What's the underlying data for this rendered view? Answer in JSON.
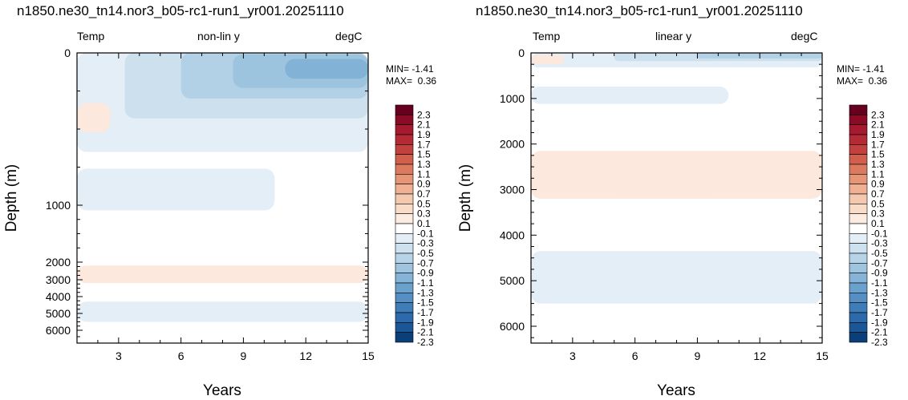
{
  "chart_data": [
    {
      "type": "heatmap",
      "title": "n1850.ne30_tn14.nor3_b05-rc1-run1_yr001.20251110",
      "header": {
        "left": "Temp",
        "center": "non-lin y",
        "right": "degC"
      },
      "xlabel": "Years",
      "ylabel": "Depth (m)",
      "xlim": [
        1,
        15
      ],
      "ylim": [
        6500,
        0
      ],
      "y_scale": "non-linear",
      "xticks": [
        "3",
        "6",
        "9",
        "12",
        "15"
      ],
      "yticks": [
        "0",
        "1000",
        "2000",
        "3000",
        "4000",
        "5000",
        "6000"
      ],
      "stats": {
        "min": "MIN= -1.41",
        "max": "MAX=  0.36"
      },
      "grid": false,
      "regions": [
        {
          "level": -0.1,
          "x": [
            1,
            15
          ],
          "y": [
            0,
            650
          ]
        },
        {
          "level": -0.3,
          "x": [
            3.3,
            15
          ],
          "y": [
            0,
            430
          ]
        },
        {
          "level": -0.5,
          "x": [
            6,
            15
          ],
          "y": [
            0,
            300
          ]
        },
        {
          "level": -0.7,
          "x": [
            8.5,
            15
          ],
          "y": [
            10,
            230
          ]
        },
        {
          "level": -0.9,
          "x": [
            11,
            15
          ],
          "y": [
            40,
            170
          ]
        },
        {
          "level": -0.1,
          "x": [
            1,
            15
          ],
          "y": [
            500,
            650
          ]
        },
        {
          "level": 0.1,
          "x": [
            1,
            2.6
          ],
          "y": [
            330,
            520
          ]
        },
        {
          "level": -0.1,
          "x": [
            1,
            10.5
          ],
          "y": [
            760,
            1090
          ]
        },
        {
          "level": 0.1,
          "x": [
            1,
            15
          ],
          "y": [
            2200,
            3200
          ]
        },
        {
          "level": -0.1,
          "x": [
            1,
            15
          ],
          "y": [
            4300,
            5500
          ]
        }
      ]
    },
    {
      "type": "heatmap",
      "title": "n1850.ne30_tn14.nor3_b05-rc1-run1_yr001.20251110",
      "header": {
        "left": "Temp",
        "center": "linear y",
        "right": "degC"
      },
      "xlabel": "Years",
      "ylabel": "Depth (m)",
      "xlim": [
        1,
        15
      ],
      "ylim": [
        6800,
        0
      ],
      "y_scale": "linear",
      "xticks": [
        "3",
        "6",
        "9",
        "12",
        "15"
      ],
      "yticks": [
        "0",
        "1000",
        "2000",
        "3000",
        "4000",
        "5000",
        "6000"
      ],
      "stats": {
        "min": "MIN= -1.41",
        "max": "MAX=  0.36"
      },
      "grid": false,
      "regions": [
        {
          "level": -0.1,
          "x": [
            1,
            15
          ],
          "y": [
            0,
            320
          ]
        },
        {
          "level": -0.3,
          "x": [
            5,
            15
          ],
          "y": [
            0,
            180
          ]
        },
        {
          "level": -0.5,
          "x": [
            9,
            15
          ],
          "y": [
            0,
            120
          ]
        },
        {
          "level": 0.1,
          "x": [
            1,
            2.6
          ],
          "y": [
            50,
            250
          ]
        },
        {
          "level": -0.1,
          "x": [
            1,
            10.5
          ],
          "y": [
            740,
            1120
          ]
        },
        {
          "level": 0.1,
          "x": [
            1,
            15
          ],
          "y": [
            2150,
            3200
          ]
        },
        {
          "level": -0.1,
          "x": [
            1,
            15
          ],
          "y": [
            4350,
            5500
          ]
        }
      ]
    }
  ],
  "colorbar": {
    "labels": [
      "2.3",
      "2.1",
      "1.9",
      "1.7",
      "1.5",
      "1.3",
      "1.1",
      "0.9",
      "0.7",
      "0.5",
      "0.3",
      "0.1",
      "-0.1",
      "-0.3",
      "-0.5",
      "-0.7",
      "-0.9",
      "-1.1",
      "-1.3",
      "-1.5",
      "-1.7",
      "-1.9",
      "-2.1",
      "-2.3"
    ],
    "colors": [
      "#67001f",
      "#8b0a26",
      "#a51a2e",
      "#b42a35",
      "#c2413f",
      "#d15f4c",
      "#dc7a5f",
      "#e69577",
      "#efb094",
      "#f5c8b0",
      "#f9dcc8",
      "#fcebe0",
      "#ffffff",
      "#e3eef6",
      "#cde1ef",
      "#b6d3e8",
      "#9ec4e0",
      "#86b4d8",
      "#6ba1cd",
      "#558fc3",
      "#3f7db8",
      "#2c6aab",
      "#1b5697",
      "#0b3f7a"
    ]
  },
  "level_colors": {
    "0.1": "#fce8dc",
    "-0.1": "#e4eef6",
    "-0.3": "#cde0ee",
    "-0.5": "#b3d1e6",
    "-0.7": "#9cc4df",
    "-0.9": "#82b3d6"
  }
}
